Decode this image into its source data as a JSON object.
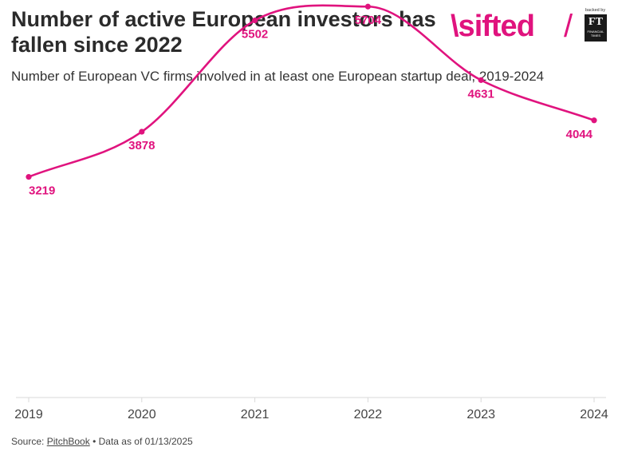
{
  "header": {
    "title": "Number of active European investors has fallen since 2022",
    "subtitle": "Number of European VC firms involved in at least one European startup deal, 2019-2024"
  },
  "brand": {
    "logo_text": "\\sifted",
    "separator": "/",
    "backed_by": "backed by",
    "partner_logo": "FT",
    "partner_name": "FINANCIAL TIMES"
  },
  "footer": {
    "source_prefix": "Source: ",
    "source_link": "PitchBook",
    "source_suffix": " • Data as of 01/13/2025"
  },
  "colors": {
    "accent": "#e0137e",
    "axis": "#d9d9d9",
    "text": "#2b2b2b"
  },
  "chart_data": {
    "type": "line",
    "title": "Number of active European investors has fallen since 2022",
    "subtitle": "Number of European VC firms involved in at least one European startup deal, 2019-2024",
    "x": [
      "2019",
      "2020",
      "2021",
      "2022",
      "2023",
      "2024"
    ],
    "series": [
      {
        "values": [
          3219,
          3878,
          5502,
          5704,
          4631,
          4044
        ]
      }
    ],
    "data_labels": [
      "3219",
      "3878",
      "5502",
      "5704",
      "4631",
      "4044"
    ],
    "xlabel": "",
    "ylabel": "",
    "ylim": [
      0,
      5800
    ],
    "y_axis_shown": false,
    "grid": false,
    "smooth": true,
    "legend": "none"
  }
}
